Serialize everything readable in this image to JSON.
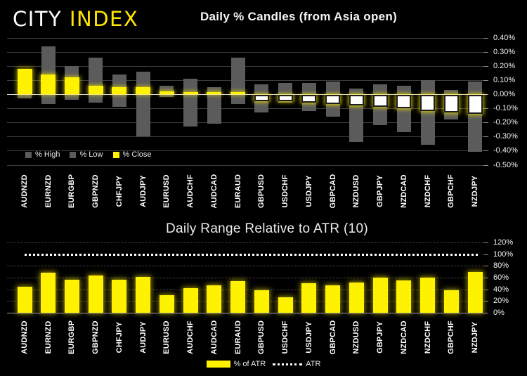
{
  "brand": {
    "city": "CITY ",
    "index": "INDEX"
  },
  "colors": {
    "background": "#000000",
    "brand_yellow": "#FFE600",
    "bar_yellow": "#FFF200",
    "bar_gray": "#5B5B5B",
    "close_negative_fill": "#FFFFFF",
    "atr_line_white": "#FFFFFF",
    "text_white": "#F2F2F2"
  },
  "chart_data": [
    {
      "type": "bar",
      "subtype": "daily-percent-candles",
      "title": "Daily % Candles (from Asia open)",
      "categories": [
        "AUDNZD",
        "EURNZD",
        "EURGBP",
        "GBPNZD",
        "CHFJPY",
        "AUDJPY",
        "EURUSD",
        "AUDCHF",
        "AUDCAD",
        "EURAUD",
        "GBPUSD",
        "USDCHF",
        "USDJPY",
        "GBPCAD",
        "NZDUSD",
        "GBPJPY",
        "NZDCAD",
        "NZDCHF",
        "GBPCHF",
        "NZDJPY"
      ],
      "series": [
        {
          "name": "% High",
          "color": "#5B5B5B",
          "values": [
            0.18,
            0.34,
            0.2,
            0.26,
            0.14,
            0.16,
            0.06,
            0.11,
            0.05,
            0.26,
            0.07,
            0.08,
            0.08,
            0.09,
            0.04,
            0.07,
            0.06,
            0.1,
            0.03,
            0.09
          ]
        },
        {
          "name": "% Low",
          "color": "#5B5B5B",
          "values": [
            -0.03,
            -0.07,
            -0.04,
            -0.06,
            -0.09,
            -0.3,
            -0.02,
            -0.23,
            -0.21,
            -0.07,
            -0.13,
            -0.06,
            -0.12,
            -0.16,
            -0.34,
            -0.22,
            -0.27,
            -0.36,
            -0.18,
            -0.41
          ]
        },
        {
          "name": "% Close",
          "color": "#FFF200",
          "values": [
            0.18,
            0.14,
            0.12,
            0.06,
            0.05,
            0.05,
            0.02,
            0.01,
            0.01,
            0.0,
            -0.05,
            -0.05,
            -0.06,
            -0.07,
            -0.08,
            -0.09,
            -0.1,
            -0.12,
            -0.13,
            -0.14
          ]
        }
      ],
      "ylim": [
        -0.5,
        0.4
      ],
      "ytick_step": 0.1,
      "ytick_labels": [
        "0.40%",
        "0.30%",
        "0.20%",
        "0.10%",
        "0.00%",
        "-0.10%",
        "-0.20%",
        "-0.30%",
        "-0.40%",
        "-0.50%"
      ],
      "grid": true,
      "legend_position": "bottom-left"
    },
    {
      "type": "bar",
      "title": "Daily Range Relative to ATR (10)",
      "categories": [
        "AUDNZD",
        "EURNZD",
        "EURGBP",
        "GBPNZD",
        "CHFJPY",
        "AUDJPY",
        "EURUSD",
        "AUDCHF",
        "AUDCAD",
        "EURAUD",
        "GBPUSD",
        "USDCHF",
        "USDJPY",
        "GBPCAD",
        "NZDUSD",
        "GBPJPY",
        "NZDCAD",
        "NZDCHF",
        "GBPCHF",
        "NZDJPY"
      ],
      "series": [
        {
          "name": "% of ATR",
          "color": "#FFF200",
          "values": [
            45,
            69,
            56,
            64,
            56,
            61,
            30,
            42,
            47,
            54,
            38,
            26,
            51,
            47,
            52,
            60,
            55,
            60,
            38,
            70
          ]
        }
      ],
      "atr_line": {
        "label": "ATR",
        "value": 100,
        "style": "dotted",
        "color": "#FFFFFF"
      },
      "ylim": [
        0,
        120
      ],
      "ytick_step": 20,
      "ytick_labels": [
        "120%",
        "100%",
        "80%",
        "60%",
        "40%",
        "20%",
        "0%"
      ],
      "grid": true,
      "legend_position": "bottom-center"
    }
  ]
}
